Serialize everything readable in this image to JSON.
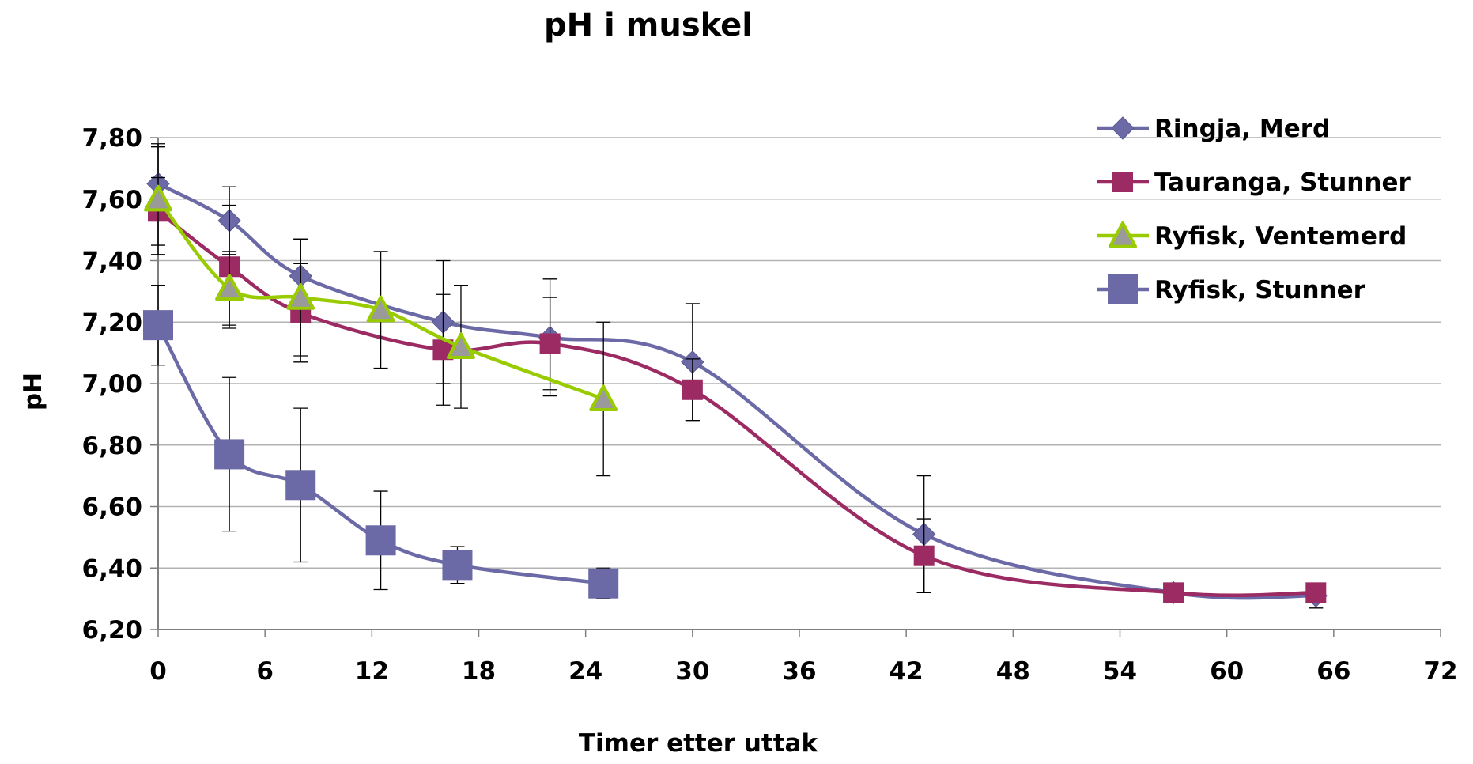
{
  "chart_data": {
    "type": "line",
    "title": "pH i muskel",
    "xlabel": "Timer etter uttak",
    "ylabel": "pH",
    "xlim": [
      0,
      72
    ],
    "ylim": [
      6.2,
      7.8
    ],
    "x_ticks": [
      "0",
      "6",
      "12",
      "18",
      "24",
      "30",
      "36",
      "42",
      "48",
      "54",
      "60",
      "66",
      "72"
    ],
    "y_ticks": [
      "6,20",
      "6,40",
      "6,60",
      "6,80",
      "7,00",
      "7,20",
      "7,40",
      "7,60",
      "7,80"
    ],
    "grid": true,
    "legend_position": "top-right",
    "series": [
      {
        "name": "Ringja, Merd",
        "color": "#6b6aa6",
        "marker": "diamond",
        "x": [
          0,
          4,
          8,
          16,
          22,
          30,
          43,
          57,
          65
        ],
        "y": [
          7.65,
          7.53,
          7.35,
          7.2,
          7.15,
          7.07,
          6.51,
          6.32,
          6.31
        ],
        "err": [
          0.12,
          0.11,
          0.12,
          0.2,
          0.19,
          0.19,
          0.19,
          0.03,
          0.04
        ]
      },
      {
        "name": "Tauranga, Stunner",
        "color": "#9b2b62",
        "marker": "square",
        "x": [
          0,
          4,
          8,
          16,
          22,
          30,
          43,
          57,
          65
        ],
        "y": [
          7.56,
          7.38,
          7.23,
          7.11,
          7.13,
          6.98,
          6.44,
          6.32,
          6.32
        ],
        "err": [
          0.11,
          0.2,
          0.16,
          0.18,
          0.15,
          0.1,
          0.12,
          0.02,
          0.03
        ]
      },
      {
        "name": "Ryfisk, Ventemerd",
        "color": "#99cc00",
        "marker": "triangle",
        "x": [
          0,
          4,
          8,
          12.5,
          17,
          25
        ],
        "y": [
          7.6,
          7.31,
          7.28,
          7.24,
          7.12,
          6.95
        ],
        "err": [
          0.18,
          0.12,
          0.19,
          0.19,
          0.2,
          0.25
        ]
      },
      {
        "name": "Ryfisk, Stunner",
        "color": "#6b6aa6",
        "marker": "square-large",
        "x": [
          0,
          4,
          8,
          12.5,
          16.8,
          25
        ],
        "y": [
          7.19,
          6.77,
          6.67,
          6.49,
          6.41,
          6.35
        ],
        "err": [
          0.13,
          0.25,
          0.25,
          0.16,
          0.06,
          0.05
        ]
      }
    ]
  }
}
